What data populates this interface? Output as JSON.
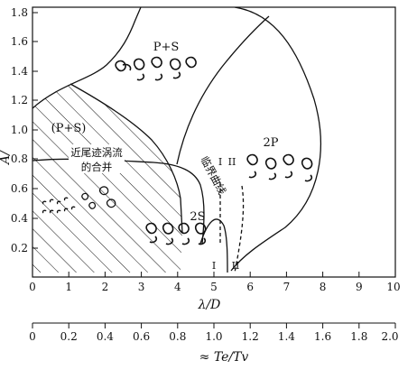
{
  "chart_data": {
    "type": "regime-map",
    "xlabel_main": "λ/D",
    "xlabel_secondary": "≈ Te/Tv",
    "ylabel_partial": "A/",
    "x_ticks": [
      "0",
      "1",
      "2",
      "3",
      "4",
      "5",
      "6",
      "7",
      "8",
      "9",
      "10"
    ],
    "y_ticks": [
      "0.2",
      "0.4",
      "0.6",
      "0.8",
      "1.0",
      "1.2",
      "1.4",
      "1.6",
      "1.8"
    ],
    "secondary_ticks": [
      "0",
      "0.2",
      "0.4",
      "0.6",
      "0.8",
      "1.0",
      "1.2",
      "1.4",
      "1.6",
      "1.8",
      "2.0"
    ],
    "xlim": [
      0,
      10
    ],
    "ylim": [
      0,
      1.85
    ],
    "secondary_lim": [
      0,
      2.0
    ],
    "regions": {
      "p_plus_s_upper": "P+S",
      "p_plus_s_paren": "(P+S)",
      "two_p": "2P",
      "two_s": "2S"
    },
    "annotations": {
      "near_wake_coalescence": [
        "近尾迹涡流",
        "的合并"
      ],
      "critical_curve": "临界曲线",
      "roman_I": "I",
      "roman_II": "II"
    }
  }
}
